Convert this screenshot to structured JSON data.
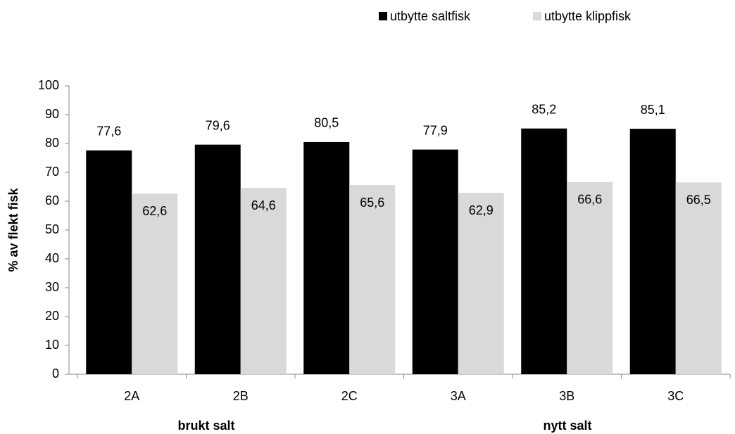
{
  "chart_data": {
    "type": "bar",
    "y_label": "% av flekt fisk",
    "categories": [
      "2A",
      "2B",
      "2C",
      "3A",
      "3B",
      "3C"
    ],
    "group_labels": [
      "brukt salt",
      "nytt salt"
    ],
    "series": [
      {
        "name": "utbytte saltfisk",
        "color": "#000000",
        "values": [
          77.6,
          79.6,
          80.5,
          77.9,
          85.2,
          85.1
        ],
        "value_labels": [
          "77,6",
          "79,6",
          "80,5",
          "77,9",
          "85,2",
          "85,1"
        ]
      },
      {
        "name": "utbytte klippfisk",
        "color": "#d9d9d9",
        "values": [
          62.6,
          64.6,
          65.6,
          62.9,
          66.6,
          66.5
        ],
        "value_labels": [
          "62,6",
          "64,6",
          "65,6",
          "62,9",
          "66,6",
          "66,5"
        ]
      }
    ],
    "ylim": [
      0,
      100
    ],
    "yticks": [
      0,
      10,
      20,
      30,
      40,
      50,
      60,
      70,
      80,
      90,
      100
    ],
    "legend": "top-right"
  }
}
